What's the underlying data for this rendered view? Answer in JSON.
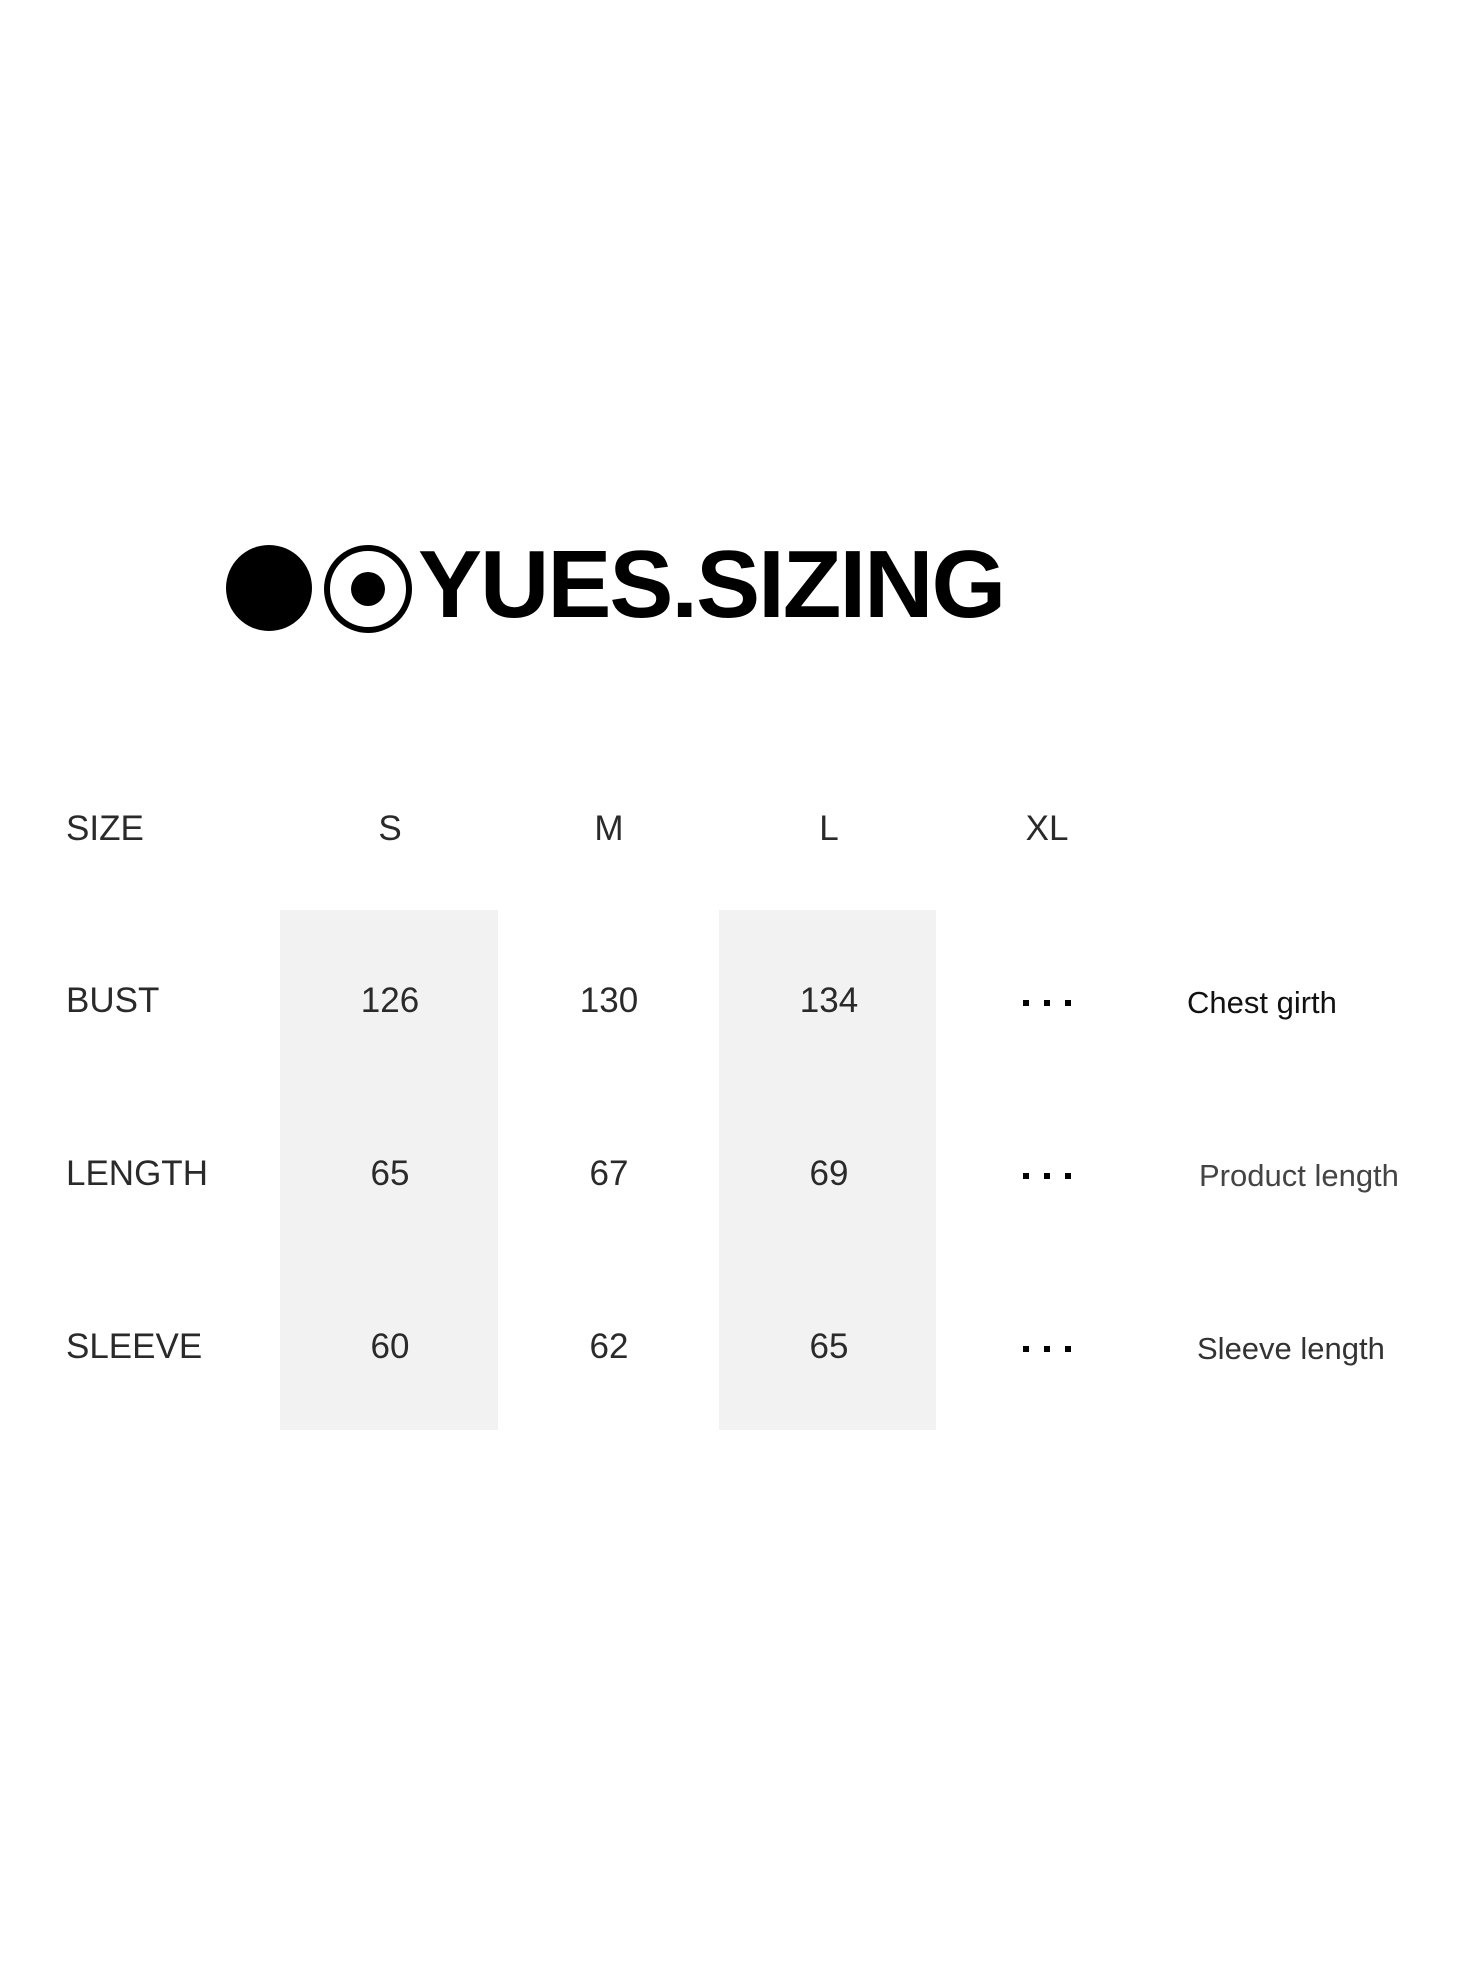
{
  "logo": {
    "text": "YUES.SIZING"
  },
  "table": {
    "header_label": "SIZE",
    "sizes": [
      "S",
      "M",
      "L",
      "XL"
    ],
    "rows": [
      {
        "label": "BUST",
        "values": [
          "126",
          "130",
          "134"
        ],
        "more": "...",
        "remark": "Chest girth"
      },
      {
        "label": "LENGTH",
        "values": [
          "65",
          "67",
          "69"
        ],
        "more": "...",
        "remark": "Product length"
      },
      {
        "label": "SLEEVE",
        "values": [
          "60",
          "62",
          "65"
        ],
        "more": "...",
        "remark": "Sleeve length"
      }
    ]
  },
  "colors": {
    "shade": "#f2f2f2",
    "text": "#222222"
  }
}
